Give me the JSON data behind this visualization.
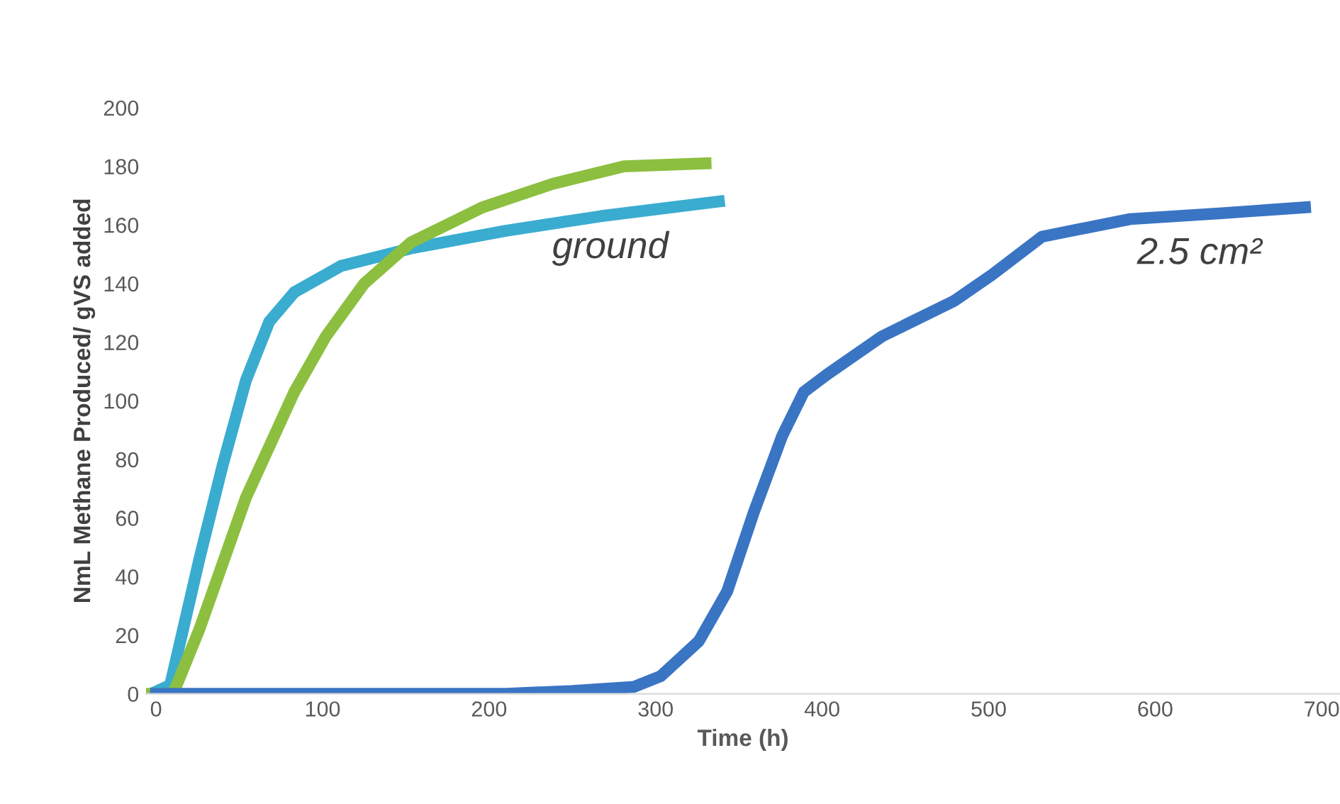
{
  "chart_data": {
    "type": "line",
    "xlabel": "Time (h)",
    "ylabel": "NmL Methane Produced/ gVS added",
    "xlim": [
      -6,
      711
    ],
    "ylim": [
      0,
      200
    ],
    "xticks": [
      0,
      100,
      200,
      300,
      400,
      500,
      600,
      700
    ],
    "yticks": [
      0,
      20,
      40,
      60,
      80,
      100,
      120,
      140,
      160,
      180,
      200
    ],
    "grid": false,
    "line_style": "solid",
    "series": [
      {
        "color": "#3aaccf",
        "x": [
          -3,
          8.5,
          26,
          40,
          54,
          68,
          83,
          111,
          153,
          210,
          267,
          338
        ],
        "values": [
          0,
          3,
          46,
          78,
          107,
          127,
          137,
          146,
          152,
          158,
          163,
          168
        ]
      },
      {
        "color": "#8cbf3f",
        "x": [
          -3,
          8,
          11,
          26,
          54,
          83,
          102,
          125,
          153,
          196,
          238,
          281,
          330
        ],
        "values": [
          0,
          0,
          1,
          22,
          67,
          103,
          122,
          140,
          154,
          166,
          174,
          180,
          181
        ]
      },
      {
        "color": "#3a75c4",
        "x": [
          0,
          210,
          250,
          287,
          303,
          326,
          343,
          359,
          376,
          389,
          403,
          436,
          479,
          502,
          532,
          585,
          640,
          690
        ],
        "values": [
          0,
          0,
          1,
          2.4,
          6,
          18,
          35,
          62,
          88,
          103,
          109,
          122,
          134,
          143,
          156,
          162,
          164,
          166
        ]
      }
    ],
    "annotations": [
      "ground",
      "2.5 cm²"
    ]
  }
}
